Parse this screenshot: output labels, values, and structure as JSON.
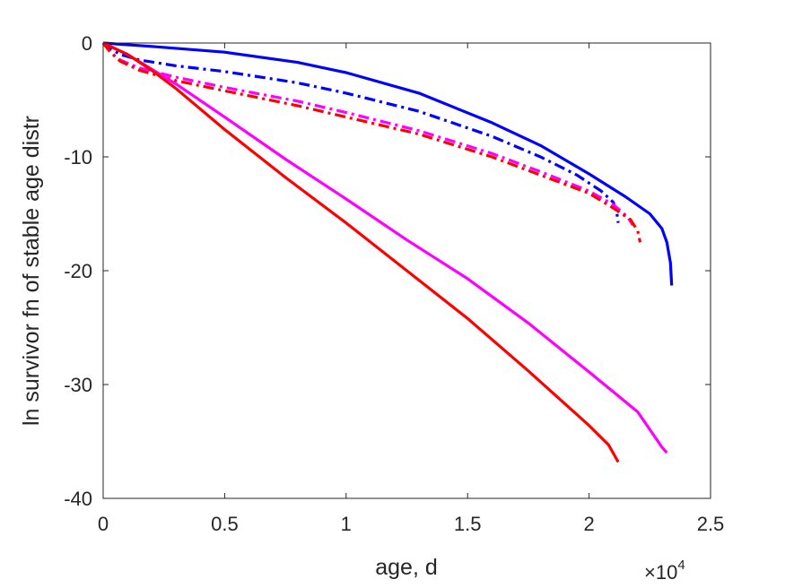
{
  "chart_data": {
    "type": "line",
    "xlabel": "age, d",
    "ylabel": "ln survivor fn of stable age distr",
    "x_multiplier_label": {
      "base": "×10",
      "exponent": "4"
    },
    "xlim": [
      0,
      25000
    ],
    "ylim": [
      -40,
      0
    ],
    "x_ticks": [
      0,
      5000,
      10000,
      15000,
      20000,
      25000
    ],
    "x_tick_labels": [
      "0",
      "0.5",
      "1",
      "1.5",
      "2",
      "2.5"
    ],
    "y_ticks": [
      0,
      -10,
      -20,
      -30,
      -40
    ],
    "y_tick_labels": [
      "0",
      "-10",
      "-20",
      "-30",
      "-40"
    ],
    "grid": false,
    "box": true,
    "series": [
      {
        "color": "#0000ff",
        "style": "solid",
        "x": [
          0,
          2000,
          5000,
          8000,
          10000,
          13000,
          16000,
          18000,
          20000,
          21500,
          22500,
          23000,
          23200,
          23350,
          23400
        ],
        "y": [
          0,
          -0.3,
          -0.8,
          -1.7,
          -2.6,
          -4.4,
          -7.0,
          -9.0,
          -11.5,
          -13.5,
          -15.0,
          -16.3,
          -17.5,
          -19.3,
          -21.3
        ]
      },
      {
        "color": "#0000ff",
        "style": "dashdot",
        "x": [
          0,
          300,
          700,
          1500,
          3000,
          5000,
          8000,
          10000,
          13000,
          16000,
          18000,
          19500,
          20500,
          21000,
          21150,
          21200
        ],
        "y": [
          0,
          -0.5,
          -1.0,
          -1.5,
          -2.0,
          -2.5,
          -3.5,
          -4.4,
          -6.0,
          -8.2,
          -10.0,
          -11.6,
          -13.0,
          -14.0,
          -15.0,
          -15.8
        ]
      },
      {
        "color": "#ff00ff",
        "style": "dashdot",
        "x": [
          0,
          300,
          700,
          1500,
          3000,
          5000,
          8000,
          10000,
          13000,
          16000,
          18000,
          20000,
          21000,
          21600,
          21800
        ],
        "y": [
          0,
          -0.8,
          -1.5,
          -2.2,
          -3.0,
          -3.9,
          -5.1,
          -6.1,
          -7.7,
          -9.7,
          -11.3,
          -13.0,
          -14.2,
          -15.3,
          -16.0
        ]
      },
      {
        "color": "#ff0000",
        "style": "dashdot",
        "x": [
          0,
          300,
          700,
          1500,
          3000,
          5000,
          8000,
          10000,
          13000,
          16000,
          18000,
          20000,
          21000,
          21700,
          22000,
          22100
        ],
        "y": [
          0,
          -0.8,
          -1.6,
          -2.4,
          -3.3,
          -4.2,
          -5.5,
          -6.5,
          -8.0,
          -10.0,
          -11.6,
          -13.2,
          -14.5,
          -15.5,
          -16.5,
          -17.5
        ]
      },
      {
        "color": "#ff00ff",
        "style": "solid",
        "x": [
          0,
          1000,
          2000,
          3000,
          5000,
          7500,
          10000,
          12500,
          15000,
          17500,
          20000,
          22000,
          23000,
          23200
        ],
        "y": [
          0,
          -1.0,
          -2.3,
          -3.6,
          -6.5,
          -10.2,
          -13.7,
          -17.3,
          -20.7,
          -24.6,
          -28.9,
          -32.4,
          -35.5,
          -36.0
        ]
      },
      {
        "color": "#ff0000",
        "style": "solid",
        "x": [
          0,
          1000,
          2000,
          3000,
          5000,
          7500,
          10000,
          12500,
          15000,
          17500,
          20000,
          20800,
          21200
        ],
        "y": [
          0,
          -1.0,
          -2.4,
          -4.0,
          -7.6,
          -11.8,
          -15.8,
          -20.0,
          -24.2,
          -28.8,
          -33.6,
          -35.3,
          -36.8
        ]
      }
    ]
  }
}
